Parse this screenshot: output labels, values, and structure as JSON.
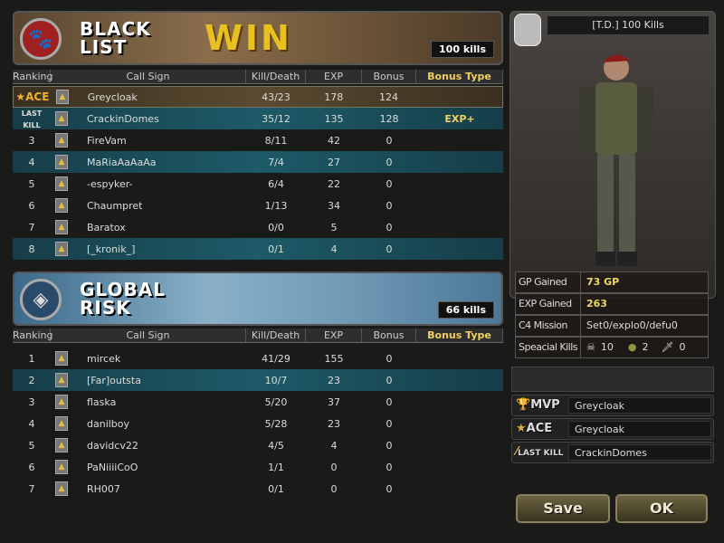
{
  "colors": {
    "highlight_row": "#1e5a68",
    "gold": "#f0d860",
    "win": "#e8c020"
  },
  "columns": [
    "Ranking",
    "Call Sign",
    "Kill/Death",
    "EXP",
    "Bonus",
    "Bonus Type"
  ],
  "black_list": {
    "name_line1": "BLACK",
    "name_line2": "LIST",
    "result": "WIN",
    "kills": "100 kills",
    "icon": "panther-emblem-icon",
    "rows": [
      {
        "rank": "ACE",
        "rank_icon": "ace-star-icon",
        "call_sign": "Greycloak",
        "kd": "43/23",
        "exp": "178",
        "bonus": "124",
        "bonus_type": "",
        "style": "top"
      },
      {
        "rank": "LAST KILL",
        "rank_icon": "last-kill-icon",
        "call_sign": "CrackinDomes",
        "kd": "35/12",
        "exp": "135",
        "bonus": "128",
        "bonus_type": "EXP+",
        "style": "hl"
      },
      {
        "rank": "3",
        "call_sign": "FireVam",
        "kd": "8/11",
        "exp": "42",
        "bonus": "0",
        "bonus_type": "",
        "style": ""
      },
      {
        "rank": "4",
        "call_sign": "MaRiaAaAaAa",
        "kd": "7/4",
        "exp": "27",
        "bonus": "0",
        "bonus_type": "",
        "style": "hl"
      },
      {
        "rank": "5",
        "call_sign": "-espyker-",
        "kd": "6/4",
        "exp": "22",
        "bonus": "0",
        "bonus_type": "",
        "style": ""
      },
      {
        "rank": "6",
        "call_sign": "Chaumpret",
        "kd": "1/13",
        "exp": "34",
        "bonus": "0",
        "bonus_type": "",
        "style": ""
      },
      {
        "rank": "7",
        "call_sign": "Baratox",
        "kd": "0/0",
        "exp": "5",
        "bonus": "0",
        "bonus_type": "",
        "style": ""
      },
      {
        "rank": "8",
        "call_sign": "[_kronik_]",
        "kd": "0/1",
        "exp": "4",
        "bonus": "0",
        "bonus_type": "",
        "style": "hl"
      }
    ]
  },
  "global_risk": {
    "name_line1": "GLOBAL",
    "name_line2": "RISK",
    "kills": "66 kills",
    "icon": "global-risk-emblem-icon",
    "rows": [
      {
        "rank": "1",
        "call_sign": "mircek",
        "kd": "41/29",
        "exp": "155",
        "bonus": "0",
        "bonus_type": "",
        "style": ""
      },
      {
        "rank": "2",
        "call_sign": "[Far]outsta",
        "kd": "10/7",
        "exp": "23",
        "bonus": "0",
        "bonus_type": "",
        "style": "hl"
      },
      {
        "rank": "3",
        "call_sign": "flaska",
        "kd": "5/20",
        "exp": "37",
        "bonus": "0",
        "bonus_type": "",
        "style": ""
      },
      {
        "rank": "4",
        "call_sign": "danilboy",
        "kd": "5/28",
        "exp": "23",
        "bonus": "0",
        "bonus_type": "",
        "style": ""
      },
      {
        "rank": "5",
        "call_sign": "davidcv22",
        "kd": "4/5",
        "exp": "4",
        "bonus": "0",
        "bonus_type": "",
        "style": ""
      },
      {
        "rank": "6",
        "call_sign": "PaNiiiiCoO",
        "kd": "1/1",
        "exp": "0",
        "bonus": "0",
        "bonus_type": "",
        "style": ""
      },
      {
        "rank": "7",
        "call_sign": "RH007",
        "kd": "0/1",
        "exp": "0",
        "bonus": "0",
        "bonus_type": "",
        "style": ""
      }
    ]
  },
  "player": {
    "name": "[T.D.] 100 Kills",
    "stats": [
      {
        "label": "GP Gained",
        "value": "73 GP",
        "gold": true
      },
      {
        "label": "EXP Gained",
        "value": "263",
        "gold": true
      },
      {
        "label": "C4 Mission",
        "value": "Set0/explo0/defu0",
        "gold": false
      }
    ],
    "special_kills_label": "Speacial Kills",
    "special_kills": {
      "headshot": "10",
      "grenade": "2",
      "knife": "0"
    }
  },
  "awards": [
    {
      "label": "MVP",
      "icon": "trophy-icon",
      "name": "Greycloak"
    },
    {
      "label": "ACE",
      "icon": "star-icon",
      "name": "Greycloak"
    },
    {
      "label": "LAST KILL",
      "icon": "bullet-icon",
      "name": "CrackinDomes"
    }
  ],
  "buttons": {
    "save": "Save",
    "ok": "OK"
  }
}
